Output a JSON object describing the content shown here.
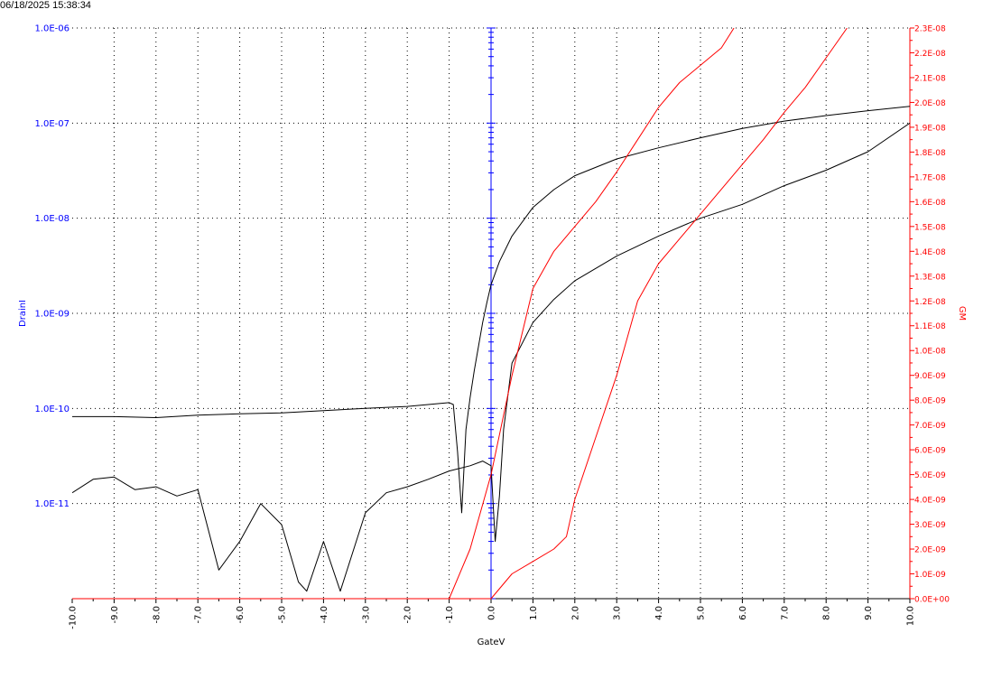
{
  "timestamp": "06/18/2025 15:38:34",
  "chart_data": {
    "type": "line",
    "title": "",
    "xlabel": "GateV",
    "ylabel_left": "DrainI",
    "ylabel_right": "GM",
    "x_range": [
      -10,
      10
    ],
    "x_ticks": [
      "-10.0",
      "-9.0",
      "-8.0",
      "-7.0",
      "-6.0",
      "-5.0",
      "-4.0",
      "-3.0",
      "-2.0",
      "-1.0",
      "0.0",
      "1.0",
      "2.0",
      "3.0",
      "4.0",
      "5.0",
      "6.0",
      "7.0",
      "8.0",
      "9.0",
      "10.0"
    ],
    "y_left_scale": "log",
    "y_left_range": [
      1e-12,
      1e-06
    ],
    "y_left_ticks": [
      "1.0E-06",
      "1.0E-07",
      "1.0E-08",
      "1.0E-09",
      "1.0E-10",
      "1.0E-11"
    ],
    "y_right_range": [
      0,
      2.3e-08
    ],
    "y_right_ticks": [
      "0.0E+00",
      "1.0E-09",
      "2.0E-09",
      "3.0E-09",
      "4.0E-09",
      "5.0E-09",
      "6.0E-09",
      "7.0E-09",
      "8.0E-09",
      "9.0E-09",
      "1.0E-08",
      "1.1E-08",
      "1.2E-08",
      "1.3E-08",
      "1.4E-08",
      "1.5E-08",
      "1.6E-08",
      "1.7E-08",
      "1.8E-08",
      "1.9E-08",
      "2.0E-08",
      "2.1E-08",
      "2.2E-08",
      "2.3E-08"
    ],
    "grid": true,
    "colors": {
      "drain": "#000000",
      "gm": "#ff0000",
      "left_axis": "#0000ff",
      "right_axis": "#ff0000"
    },
    "series": [
      {
        "axis": "left",
        "color": "#000000",
        "x": [
          -10,
          -9,
          -8,
          -7,
          -6,
          -5,
          -4,
          -3,
          -2,
          -1.5,
          -1,
          -0.9,
          -0.8,
          -0.7,
          -0.6,
          -0.5,
          -0.4,
          -0.3,
          -0.2,
          -0.1,
          0,
          0.2,
          0.5,
          1,
          1.5,
          2,
          3,
          4,
          5,
          6,
          7,
          8,
          9,
          10
        ],
        "y": [
          8.2e-11,
          8.2e-11,
          8e-11,
          8.5e-11,
          8.8e-11,
          9e-11,
          9.5e-11,
          1e-10,
          1.05e-10,
          1.1e-10,
          1.15e-10,
          1.1e-10,
          3.5e-11,
          8e-12,
          6e-11,
          1.3e-10,
          2.5e-10,
          4.5e-10,
          8e-10,
          1.3e-09,
          2e-09,
          3.5e-09,
          6.5e-09,
          1.3e-08,
          2e-08,
          2.8e-08,
          4.2e-08,
          5.5e-08,
          7e-08,
          8.8e-08,
          1.05e-07,
          1.2e-07,
          1.35e-07,
          1.5e-07
        ]
      },
      {
        "axis": "left",
        "color": "#000000",
        "x": [
          -10,
          -9.5,
          -9,
          -8.5,
          -8,
          -7.5,
          -7,
          -6.5,
          -6,
          -5.5,
          -5,
          -4.6,
          -4.4,
          -4,
          -3.6,
          -3,
          -2.5,
          -2,
          -1.5,
          -1,
          -0.5,
          -0.2,
          0,
          0.1,
          0.2,
          0.3,
          0.5,
          1,
          1.5,
          2,
          3,
          4,
          5,
          6,
          7,
          8,
          9,
          10
        ],
        "y": [
          1.3e-11,
          1.8e-11,
          1.9e-11,
          1.4e-11,
          1.5e-11,
          1.2e-11,
          1.4e-11,
          2e-12,
          4e-12,
          1e-11,
          6e-12,
          1.5e-12,
          1.2e-12,
          4e-12,
          1.2e-12,
          8e-12,
          1.3e-11,
          1.5e-11,
          1.8e-11,
          2.2e-11,
          2.5e-11,
          2.8e-11,
          2.5e-11,
          4e-12,
          1.2e-11,
          6e-11,
          3e-10,
          8e-10,
          1.4e-09,
          2.2e-09,
          4e-09,
          6.5e-09,
          1e-08,
          1.4e-08,
          2.2e-08,
          3.2e-08,
          5e-08,
          1e-07
        ]
      },
      {
        "axis": "right",
        "color": "#ff0000",
        "x": [
          -10,
          -5,
          -1,
          -0.5,
          0,
          0.5,
          1,
          1.5,
          2,
          2.5,
          3,
          3.5,
          4,
          4.5,
          5,
          5.5,
          5.8
        ],
        "y": [
          0,
          0,
          0,
          2e-09,
          5e-09,
          9e-09,
          1.25e-08,
          1.4e-08,
          1.5e-08,
          1.6e-08,
          1.72e-08,
          1.85e-08,
          1.98e-08,
          2.08e-08,
          2.15e-08,
          2.22e-08,
          2.3e-08
        ]
      },
      {
        "axis": "right",
        "color": "#ff0000",
        "x": [
          -10,
          0,
          0.5,
          1,
          1.5,
          1.8,
          2,
          2.5,
          3,
          3.5,
          4,
          4.5,
          5,
          5.5,
          6,
          6.5,
          7,
          7.5,
          8,
          8.5
        ],
        "y": [
          0,
          0,
          1e-09,
          1.5e-09,
          2e-09,
          2.5e-09,
          4e-09,
          6.5e-09,
          9e-09,
          1.2e-08,
          1.35e-08,
          1.45e-08,
          1.55e-08,
          1.65e-08,
          1.75e-08,
          1.85e-08,
          1.96e-08,
          2.06e-08,
          2.18e-08,
          2.3e-08
        ]
      }
    ]
  }
}
